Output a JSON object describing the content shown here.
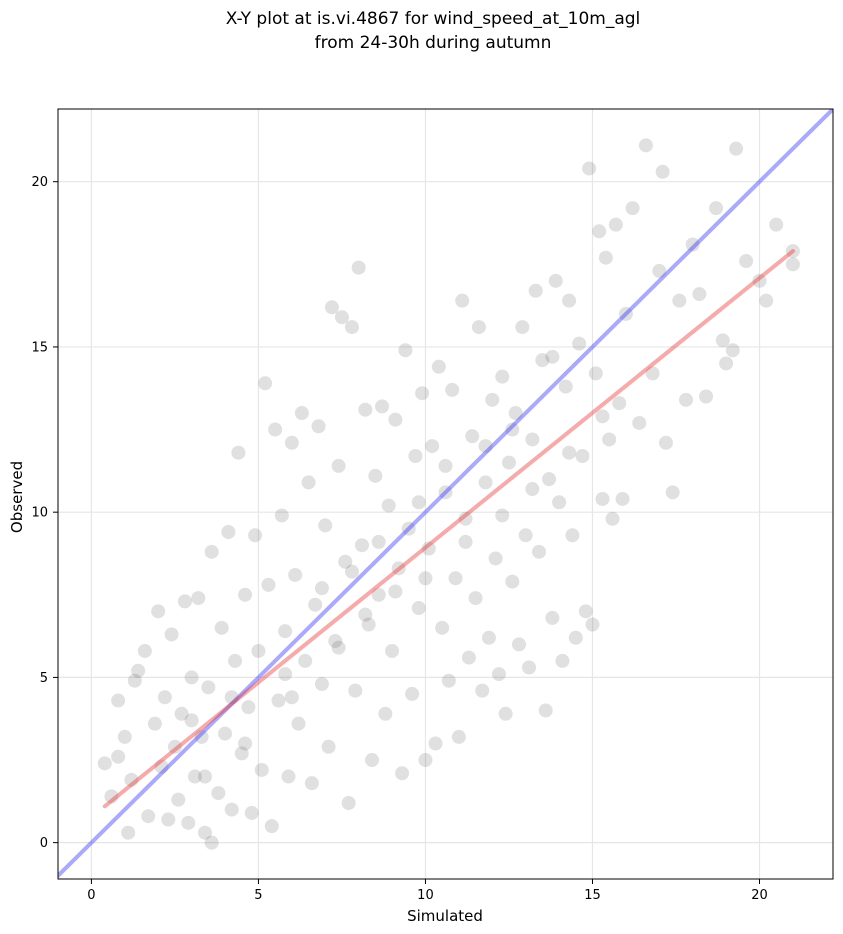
{
  "chart_data": {
    "type": "scatter",
    "title": "X-Y plot at is.vi.4867 for wind_speed_at_10m_agl",
    "subtitle": "from 24-30h during autumn",
    "xlabel": "Simulated",
    "ylabel": "Observed",
    "xlim": [
      -1.0,
      22.2
    ],
    "ylim": [
      -1.1,
      22.2
    ],
    "xticks": [
      0,
      5,
      10,
      15,
      20
    ],
    "yticks": [
      0,
      5,
      10,
      15,
      20
    ],
    "grid": true,
    "colors": {
      "points": "#555555",
      "one_to_one_line": "#3333ff",
      "fit_line": "#ee3333"
    },
    "series": [
      {
        "type": "scatter",
        "points_note": "Approx. 2000 semi-transparent grey points, dense cloud along the diagonal; representative sampled values below (sim, obs).",
        "values": [
          [
            0.4,
            2.4
          ],
          [
            0.6,
            1.4
          ],
          [
            0.8,
            2.6
          ],
          [
            0.8,
            4.3
          ],
          [
            1.0,
            3.2
          ],
          [
            1.1,
            0.3
          ],
          [
            1.2,
            1.9
          ],
          [
            1.3,
            4.9
          ],
          [
            1.4,
            5.2
          ],
          [
            1.6,
            5.8
          ],
          [
            1.7,
            0.8
          ],
          [
            1.9,
            3.6
          ],
          [
            2.0,
            7.0
          ],
          [
            2.1,
            2.3
          ],
          [
            2.2,
            4.4
          ],
          [
            2.3,
            0.7
          ],
          [
            2.4,
            6.3
          ],
          [
            2.6,
            1.3
          ],
          [
            2.7,
            3.9
          ],
          [
            2.8,
            7.3
          ],
          [
            2.9,
            0.6
          ],
          [
            3.0,
            5.0
          ],
          [
            3.1,
            2.0
          ],
          [
            3.2,
            7.4
          ],
          [
            3.3,
            3.2
          ],
          [
            3.4,
            0.3
          ],
          [
            3.5,
            4.7
          ],
          [
            3.6,
            0.0
          ],
          [
            3.6,
            8.8
          ],
          [
            3.8,
            1.5
          ],
          [
            3.9,
            6.5
          ],
          [
            4.0,
            3.3
          ],
          [
            4.1,
            9.4
          ],
          [
            4.2,
            1.0
          ],
          [
            4.3,
            5.5
          ],
          [
            4.4,
            11.8
          ],
          [
            4.5,
            2.7
          ],
          [
            4.6,
            7.5
          ],
          [
            4.7,
            4.1
          ],
          [
            4.8,
            0.9
          ],
          [
            4.9,
            9.3
          ],
          [
            5.0,
            5.8
          ],
          [
            5.1,
            2.2
          ],
          [
            5.2,
            13.9
          ],
          [
            5.3,
            7.8
          ],
          [
            5.4,
            0.5
          ],
          [
            5.5,
            12.5
          ],
          [
            5.6,
            4.3
          ],
          [
            5.7,
            9.9
          ],
          [
            5.8,
            6.4
          ],
          [
            5.9,
            2.0
          ],
          [
            6.0,
            12.1
          ],
          [
            6.1,
            8.1
          ],
          [
            6.2,
            3.6
          ],
          [
            6.3,
            13.0
          ],
          [
            6.4,
            5.5
          ],
          [
            6.5,
            10.9
          ],
          [
            6.6,
            1.8
          ],
          [
            6.7,
            7.2
          ],
          [
            6.8,
            12.6
          ],
          [
            6.9,
            4.8
          ],
          [
            7.0,
            9.6
          ],
          [
            7.1,
            2.9
          ],
          [
            7.2,
            16.2
          ],
          [
            7.3,
            6.1
          ],
          [
            7.4,
            11.4
          ],
          [
            7.5,
            15.9
          ],
          [
            7.6,
            8.5
          ],
          [
            7.7,
            1.2
          ],
          [
            7.8,
            15.6
          ],
          [
            7.9,
            4.6
          ],
          [
            8.0,
            17.4
          ],
          [
            8.1,
            9.0
          ],
          [
            8.2,
            13.1
          ],
          [
            8.3,
            6.6
          ],
          [
            8.4,
            2.5
          ],
          [
            8.5,
            11.1
          ],
          [
            8.6,
            7.5
          ],
          [
            8.7,
            13.2
          ],
          [
            8.8,
            3.9
          ],
          [
            8.9,
            10.2
          ],
          [
            9.0,
            5.8
          ],
          [
            9.1,
            12.8
          ],
          [
            9.2,
            8.3
          ],
          [
            9.3,
            2.1
          ],
          [
            9.4,
            14.9
          ],
          [
            9.5,
            9.5
          ],
          [
            9.6,
            4.5
          ],
          [
            9.7,
            11.7
          ],
          [
            9.8,
            7.1
          ],
          [
            9.9,
            13.6
          ],
          [
            10.0,
            2.5
          ],
          [
            10.1,
            8.9
          ],
          [
            10.2,
            12.0
          ],
          [
            10.3,
            3.0
          ],
          [
            10.4,
            14.4
          ],
          [
            10.5,
            6.5
          ],
          [
            10.6,
            10.6
          ],
          [
            10.7,
            4.9
          ],
          [
            10.8,
            13.7
          ],
          [
            10.9,
            8.0
          ],
          [
            11.0,
            3.2
          ],
          [
            11.1,
            16.4
          ],
          [
            11.2,
            9.8
          ],
          [
            11.3,
            5.6
          ],
          [
            11.4,
            12.3
          ],
          [
            11.5,
            7.4
          ],
          [
            11.6,
            15.6
          ],
          [
            11.7,
            4.6
          ],
          [
            11.8,
            10.9
          ],
          [
            11.9,
            6.2
          ],
          [
            12.0,
            13.4
          ],
          [
            12.1,
            8.6
          ],
          [
            12.2,
            5.1
          ],
          [
            12.3,
            14.1
          ],
          [
            12.4,
            3.9
          ],
          [
            12.5,
            11.5
          ],
          [
            12.6,
            7.9
          ],
          [
            12.7,
            13.0
          ],
          [
            12.8,
            6.0
          ],
          [
            12.9,
            15.6
          ],
          [
            13.0,
            9.3
          ],
          [
            13.1,
            5.3
          ],
          [
            13.2,
            12.2
          ],
          [
            13.3,
            16.7
          ],
          [
            13.4,
            8.8
          ],
          [
            13.5,
            14.6
          ],
          [
            13.6,
            4.0
          ],
          [
            13.7,
            11.0
          ],
          [
            13.8,
            6.8
          ],
          [
            13.9,
            17.0
          ],
          [
            14.0,
            10.3
          ],
          [
            14.1,
            5.5
          ],
          [
            14.2,
            13.8
          ],
          [
            14.3,
            16.4
          ],
          [
            14.4,
            9.3
          ],
          [
            14.5,
            6.2
          ],
          [
            14.6,
            15.1
          ],
          [
            14.7,
            11.7
          ],
          [
            14.8,
            7.0
          ],
          [
            14.9,
            20.4
          ],
          [
            15.0,
            6.6
          ],
          [
            15.1,
            14.2
          ],
          [
            15.2,
            18.5
          ],
          [
            15.3,
            10.4
          ],
          [
            15.4,
            17.7
          ],
          [
            15.5,
            12.2
          ],
          [
            15.6,
            9.8
          ],
          [
            15.7,
            18.7
          ],
          [
            15.8,
            13.3
          ],
          [
            15.9,
            10.4
          ],
          [
            16.0,
            16.0
          ],
          [
            16.2,
            19.2
          ],
          [
            16.4,
            12.7
          ],
          [
            16.6,
            21.1
          ],
          [
            16.8,
            14.2
          ],
          [
            17.0,
            17.3
          ],
          [
            17.1,
            20.3
          ],
          [
            17.2,
            12.1
          ],
          [
            17.4,
            10.6
          ],
          [
            17.6,
            16.4
          ],
          [
            17.8,
            13.4
          ],
          [
            18.0,
            18.1
          ],
          [
            18.2,
            16.6
          ],
          [
            18.4,
            13.5
          ],
          [
            18.7,
            19.2
          ],
          [
            18.9,
            15.2
          ],
          [
            19.0,
            14.5
          ],
          [
            19.2,
            14.9
          ],
          [
            19.3,
            21.0
          ],
          [
            19.6,
            17.6
          ],
          [
            20.0,
            17.0
          ],
          [
            20.2,
            16.4
          ],
          [
            20.5,
            18.7
          ],
          [
            21.0,
            17.5
          ],
          [
            21.0,
            17.9
          ],
          [
            2.5,
            2.9
          ],
          [
            3.0,
            3.7
          ],
          [
            4.2,
            4.4
          ],
          [
            5.8,
            5.1
          ],
          [
            6.9,
            7.7
          ],
          [
            7.8,
            8.2
          ],
          [
            8.6,
            9.1
          ],
          [
            9.8,
            10.3
          ],
          [
            10.6,
            11.4
          ],
          [
            11.8,
            12.0
          ],
          [
            12.6,
            12.5
          ],
          [
            13.8,
            14.7
          ],
          [
            3.4,
            2.0
          ],
          [
            4.6,
            3.0
          ],
          [
            6.0,
            4.4
          ],
          [
            7.4,
            5.9
          ],
          [
            8.2,
            6.9
          ],
          [
            9.1,
            7.6
          ],
          [
            10.0,
            8.0
          ],
          [
            11.2,
            9.1
          ],
          [
            12.3,
            9.9
          ],
          [
            13.2,
            10.7
          ],
          [
            14.3,
            11.8
          ],
          [
            15.3,
            12.9
          ]
        ]
      }
    ],
    "lines": [
      {
        "kind": "one_to_one",
        "x": [
          -1.0,
          22.2
        ],
        "y": [
          -1.0,
          22.2
        ]
      },
      {
        "kind": "fit",
        "x": [
          0.4,
          21.0
        ],
        "y": [
          1.1,
          17.9
        ]
      }
    ]
  }
}
